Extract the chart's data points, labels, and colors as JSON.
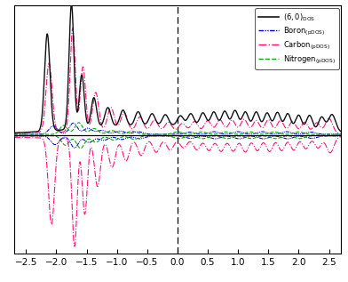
{
  "xlim": [
    -2.7,
    2.7
  ],
  "ylim": [
    -5.5,
    6.0
  ],
  "xlabel_ticks": [
    -2.5,
    -2.0,
    -1.5,
    -1.0,
    -0.5,
    0.0,
    0.5,
    1.0,
    1.5,
    2.0,
    2.5
  ],
  "dos_color": "#111111",
  "boron_color": "#0000cc",
  "carbon_color": "#ff1177",
  "nitrogen_color": "#00aa00",
  "background_color": "#ffffff",
  "figsize": [
    3.92,
    3.17
  ],
  "dpi": 100
}
